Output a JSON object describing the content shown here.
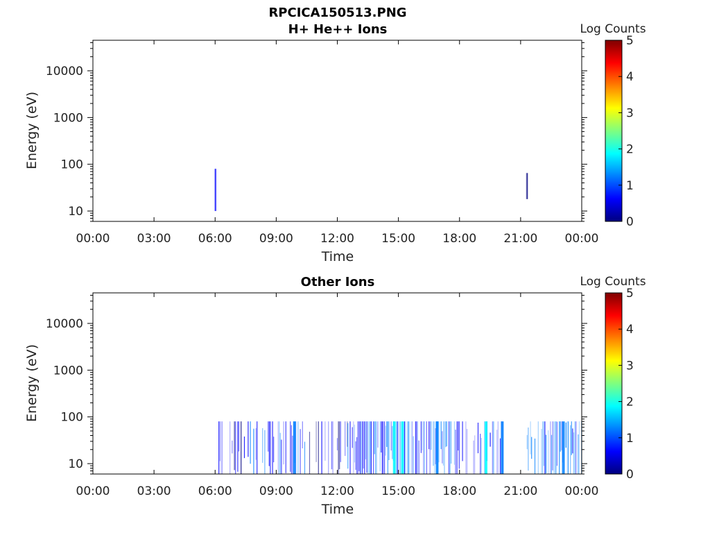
{
  "figure": {
    "title": "RPCICA150513.PNG"
  },
  "colors": {
    "colormap": [
      "#00007f",
      "#0000ff",
      "#007fff",
      "#00ffff",
      "#7fff7f",
      "#ffff00",
      "#ff7f00",
      "#ff0000",
      "#7f0000"
    ],
    "low": "#0a0ad0",
    "mid": "#1a5cff",
    "high": "#18c8e8"
  },
  "chart_data": [
    {
      "type": "heatmap",
      "title": "H+ He++ Ions",
      "xlabel": "Time",
      "ylabel": "Energy (eV)",
      "x_ticks": [
        "00:00",
        "03:00",
        "06:00",
        "09:00",
        "12:00",
        "15:00",
        "18:00",
        "21:00",
        "00:00"
      ],
      "x_range_hours": [
        0,
        24
      ],
      "y_scale": "log",
      "y_ticks": [
        "10",
        "100",
        "1000",
        "10000"
      ],
      "y_range": [
        6,
        45000
      ],
      "colorbar": {
        "label": "Log Counts",
        "range": [
          0,
          5
        ],
        "ticks": [
          "0",
          "1",
          "2",
          "3",
          "4",
          "5"
        ]
      },
      "bursts": [
        {
          "t": 6.0,
          "e_lo": 10,
          "e_hi": 80,
          "level": 0.8
        },
        {
          "t": 21.3,
          "e_lo": 18,
          "e_hi": 65,
          "level": 0.3
        }
      ]
    },
    {
      "type": "heatmap",
      "title": "Other Ions",
      "xlabel": "Time",
      "ylabel": "Energy (eV)",
      "x_ticks": [
        "00:00",
        "03:00",
        "06:00",
        "09:00",
        "12:00",
        "15:00",
        "18:00",
        "21:00",
        "00:00"
      ],
      "x_range_hours": [
        0,
        24
      ],
      "y_scale": "log",
      "y_ticks": [
        "10",
        "100",
        "1000",
        "10000"
      ],
      "y_range": [
        6,
        45000
      ],
      "colorbar": {
        "label": "Log Counts",
        "range": [
          0,
          5
        ],
        "ticks": [
          "0",
          "1",
          "2",
          "3",
          "4",
          "5"
        ]
      },
      "e_max": 80,
      "activity": [
        {
          "start": 6.0,
          "end": 7.6,
          "density": 0.45,
          "level": 0.6
        },
        {
          "start": 7.6,
          "end": 10.4,
          "density": 0.6,
          "level": 1.0
        },
        {
          "start": 10.4,
          "end": 11.0,
          "density": 0.05,
          "level": 0.4
        },
        {
          "start": 11.0,
          "end": 12.5,
          "density": 0.35,
          "level": 0.5
        },
        {
          "start": 12.5,
          "end": 17.8,
          "density": 0.75,
          "level": 1.1
        },
        {
          "start": 17.8,
          "end": 20.2,
          "density": 0.45,
          "level": 0.8
        },
        {
          "start": 21.3,
          "end": 24.0,
          "density": 0.8,
          "level": 1.2
        }
      ],
      "bright_columns": [
        {
          "t": 9.9,
          "level": 1.4
        },
        {
          "t": 14.8,
          "level": 2.0
        },
        {
          "t": 15.2,
          "level": 1.8
        },
        {
          "t": 16.9,
          "level": 1.4
        },
        {
          "t": 19.3,
          "level": 1.6
        },
        {
          "t": 20.1,
          "level": 1.2
        },
        {
          "t": 23.1,
          "level": 1.3
        }
      ]
    }
  ]
}
